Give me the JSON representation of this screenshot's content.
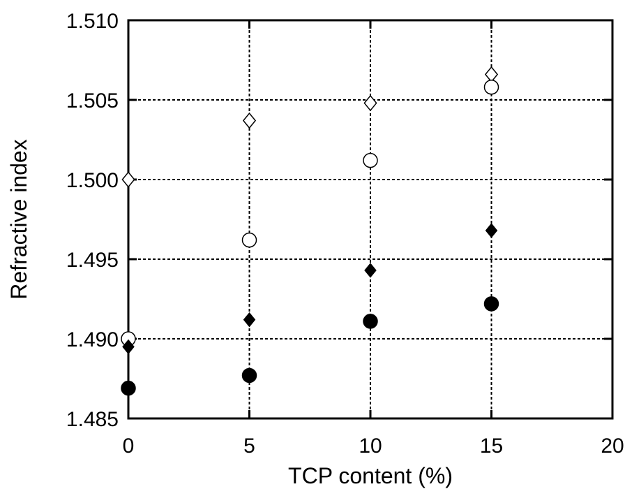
{
  "chart_data": {
    "type": "scatter",
    "title": "",
    "xlabel": "TCP content (%)",
    "ylabel": "Refractive index",
    "xlim": [
      0,
      20
    ],
    "ylim": [
      1.485,
      1.51
    ],
    "x_ticks": [
      "0",
      "5",
      "10",
      "15",
      "20"
    ],
    "y_ticks": [
      "1.485",
      "1.490",
      "1.495",
      "1.500",
      "1.505",
      "1.510"
    ],
    "grid": "dotted at major ticks",
    "series": [
      {
        "marker": "open-diamond",
        "color": "#000000",
        "points": [
          {
            "x": 0,
            "y": 1.5
          },
          {
            "x": 5,
            "y": 1.5037
          },
          {
            "x": 10,
            "y": 1.5048
          },
          {
            "x": 15,
            "y": 1.5066
          }
        ]
      },
      {
        "marker": "open-circle",
        "color": "#000000",
        "points": [
          {
            "x": 0,
            "y": 1.49
          },
          {
            "x": 5,
            "y": 1.4962
          },
          {
            "x": 10,
            "y": 1.5012
          },
          {
            "x": 15,
            "y": 1.5058
          }
        ]
      },
      {
        "marker": "filled-diamond",
        "color": "#000000",
        "points": [
          {
            "x": 0,
            "y": 1.4895
          },
          {
            "x": 5,
            "y": 1.4912
          },
          {
            "x": 10,
            "y": 1.4943
          },
          {
            "x": 15,
            "y": 1.4968
          }
        ]
      },
      {
        "marker": "filled-circle",
        "color": "#000000",
        "points": [
          {
            "x": 0,
            "y": 1.4869
          },
          {
            "x": 5,
            "y": 1.4877
          },
          {
            "x": 10,
            "y": 1.4911
          },
          {
            "x": 15,
            "y": 1.4922
          }
        ]
      }
    ]
  }
}
